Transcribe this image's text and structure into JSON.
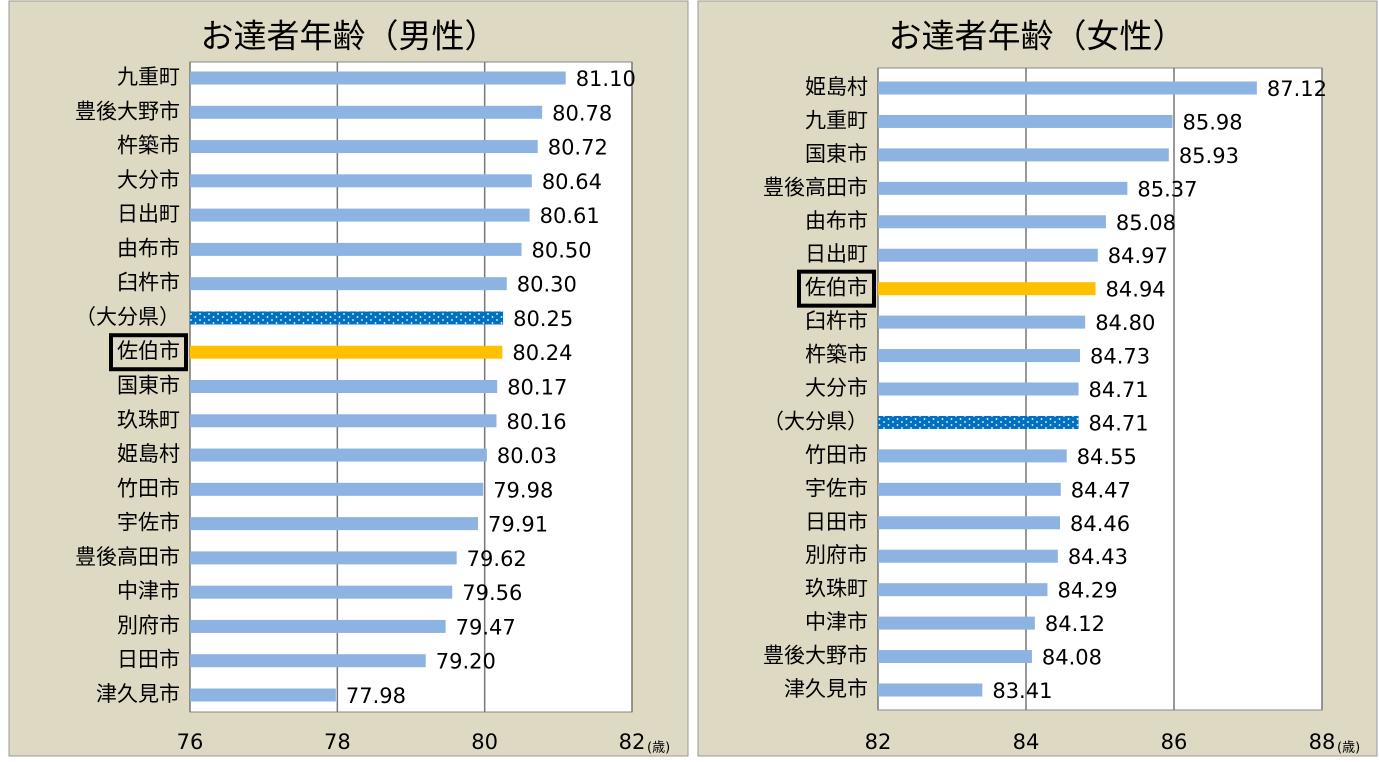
{
  "chart_data": [
    {
      "type": "bar",
      "orientation": "horizontal",
      "title": "お達者年齢（男性）",
      "x_unit": "(歳)",
      "categories": [
        "九重町",
        "豊後大野市",
        "杵築市",
        "大分市",
        "日出町",
        "由布市",
        "臼杵市",
        "（大分県）",
        "佐伯市",
        "国東市",
        "玖珠町",
        "姫島村",
        "竹田市",
        "宇佐市",
        "豊後高田市",
        "中津市",
        "別府市",
        "日田市",
        "津久見市"
      ],
      "values": [
        81.1,
        80.78,
        80.72,
        80.64,
        80.61,
        80.5,
        80.3,
        80.25,
        80.24,
        80.17,
        80.16,
        80.03,
        79.98,
        79.91,
        79.62,
        79.56,
        79.47,
        79.2,
        77.98
      ],
      "value_labels": [
        "81.10",
        "80.78",
        "80.72",
        "80.64",
        "80.61",
        "80.50",
        "80.30",
        "80.25",
        "80.24",
        "80.17",
        "80.16",
        "80.03",
        "79.98",
        "79.91",
        "79.62",
        "79.56",
        "79.47",
        "79.20",
        "77.98"
      ],
      "color": "#8db3e2",
      "highlight_color": "#ffc000",
      "prefecture_color": "#0070c0",
      "highlight_index": 8,
      "prefecture_index": 7,
      "xlim": [
        76,
        82
      ],
      "xticks": [
        76,
        78,
        80,
        82
      ],
      "grid": true
    },
    {
      "type": "bar",
      "orientation": "horizontal",
      "title": "お達者年齢（女性）",
      "x_unit": "(歳)",
      "categories": [
        "姫島村",
        "九重町",
        "国東市",
        "豊後高田市",
        "由布市",
        "日出町",
        "佐伯市",
        "臼杵市",
        "杵築市",
        "大分市",
        "（大分県）",
        "竹田市",
        "宇佐市",
        "日田市",
        "別府市",
        "玖珠町",
        "中津市",
        "豊後大野市",
        "津久見市"
      ],
      "values": [
        87.12,
        85.98,
        85.93,
        85.37,
        85.08,
        84.97,
        84.94,
        84.8,
        84.73,
        84.71,
        84.71,
        84.55,
        84.47,
        84.46,
        84.43,
        84.29,
        84.12,
        84.08,
        83.41
      ],
      "value_labels": [
        "87.12",
        "85.98",
        "85.93",
        "85.37",
        "85.08",
        "84.97",
        "84.94",
        "84.80",
        "84.73",
        "84.71",
        "84.71",
        "84.55",
        "84.47",
        "84.46",
        "84.43",
        "84.29",
        "84.12",
        "84.08",
        "83.41"
      ],
      "color": "#8db3e2",
      "highlight_color": "#ffc000",
      "prefecture_color": "#0070c0",
      "highlight_index": 6,
      "prefecture_index": 10,
      "xlim": [
        82,
        88
      ],
      "xticks": [
        82,
        84,
        86,
        88
      ],
      "grid": true
    }
  ]
}
